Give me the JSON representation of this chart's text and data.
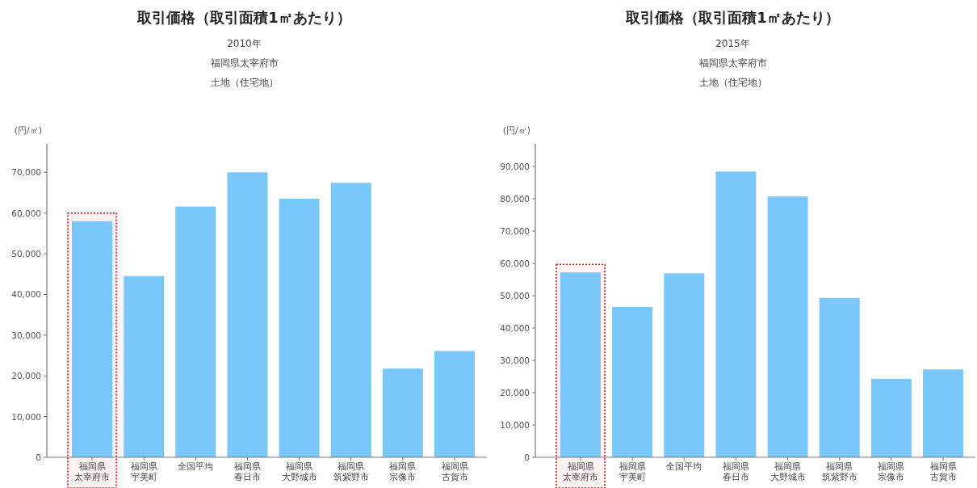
{
  "chart_data": [
    {
      "type": "bar",
      "title": "取引価格（取引面積1㎡あたり）",
      "subtitle": "2010年",
      "annotations": [
        "福岡県太宰府市",
        "土地（住宅地）"
      ],
      "ylabel": "(円/㎡)",
      "categories": [
        "福岡県太宰府市",
        "福岡県宇美町",
        "全国平均",
        "福岡県春日市",
        "福岡県大野城市",
        "福岡県筑紫野市",
        "福岡県宗像市",
        "福岡県古賀市"
      ],
      "values": [
        58000,
        44500,
        61600,
        70000,
        63500,
        67400,
        21800,
        26100
      ],
      "color": "#7ac7fb",
      "ylim": [
        0,
        77000
      ],
      "yticks": [
        0,
        {
          "value": 10000,
          "label": "10,000"
        },
        {
          "value": 20000,
          "label": "20,000"
        },
        {
          "value": 30000,
          "label": "30,000"
        },
        {
          "value": 40000,
          "label": "40,000"
        },
        {
          "value": 50000,
          "label": "50,000"
        },
        {
          "value": 60000,
          "label": "60,000"
        },
        {
          "value": 70000,
          "label": "70,000"
        }
      ],
      "bands": [
        {
          "axis": "x",
          "from": "福岡県太宰府市",
          "to": "福岡県太宰府市",
          "color": "#e00000"
        }
      ]
    },
    {
      "type": "bar",
      "title": "取引価格（取引面積1㎡あたり）",
      "subtitle": "2015年",
      "annotations": [
        "福岡県太宰府市",
        "土地（住宅地）"
      ],
      "ylabel": "(円/㎡)",
      "categories": [
        "福岡県太宰府市",
        "福岡県宇美町",
        "全国平均",
        "福岡県春日市",
        "福岡県大野城市",
        "福岡県筑紫野市",
        "福岡県宗像市",
        "福岡県古賀市"
      ],
      "values": [
        57200,
        46500,
        56900,
        88400,
        80700,
        49300,
        24300,
        27200
      ],
      "color": "#7ac7fb",
      "ylim": [
        0,
        97000
      ],
      "yticks": [
        0,
        {
          "value": 10000,
          "label": "10,000"
        },
        {
          "value": 20000,
          "label": "20,000"
        },
        {
          "value": 30000,
          "label": "30,000"
        },
        {
          "value": 40000,
          "label": "40,000"
        },
        {
          "value": 50000,
          "label": "50,000"
        },
        {
          "value": 60000,
          "label": "60,000"
        },
        {
          "value": 70000,
          "label": "70,000"
        },
        {
          "value": 80000,
          "label": "80,000"
        },
        {
          "value": 90000,
          "label": "90,000"
        }
      ],
      "bands": [
        {
          "axis": "x",
          "from": "福岡県太宰府市",
          "to": "福岡県太宰府市",
          "color": "#e00000"
        }
      ]
    }
  ]
}
